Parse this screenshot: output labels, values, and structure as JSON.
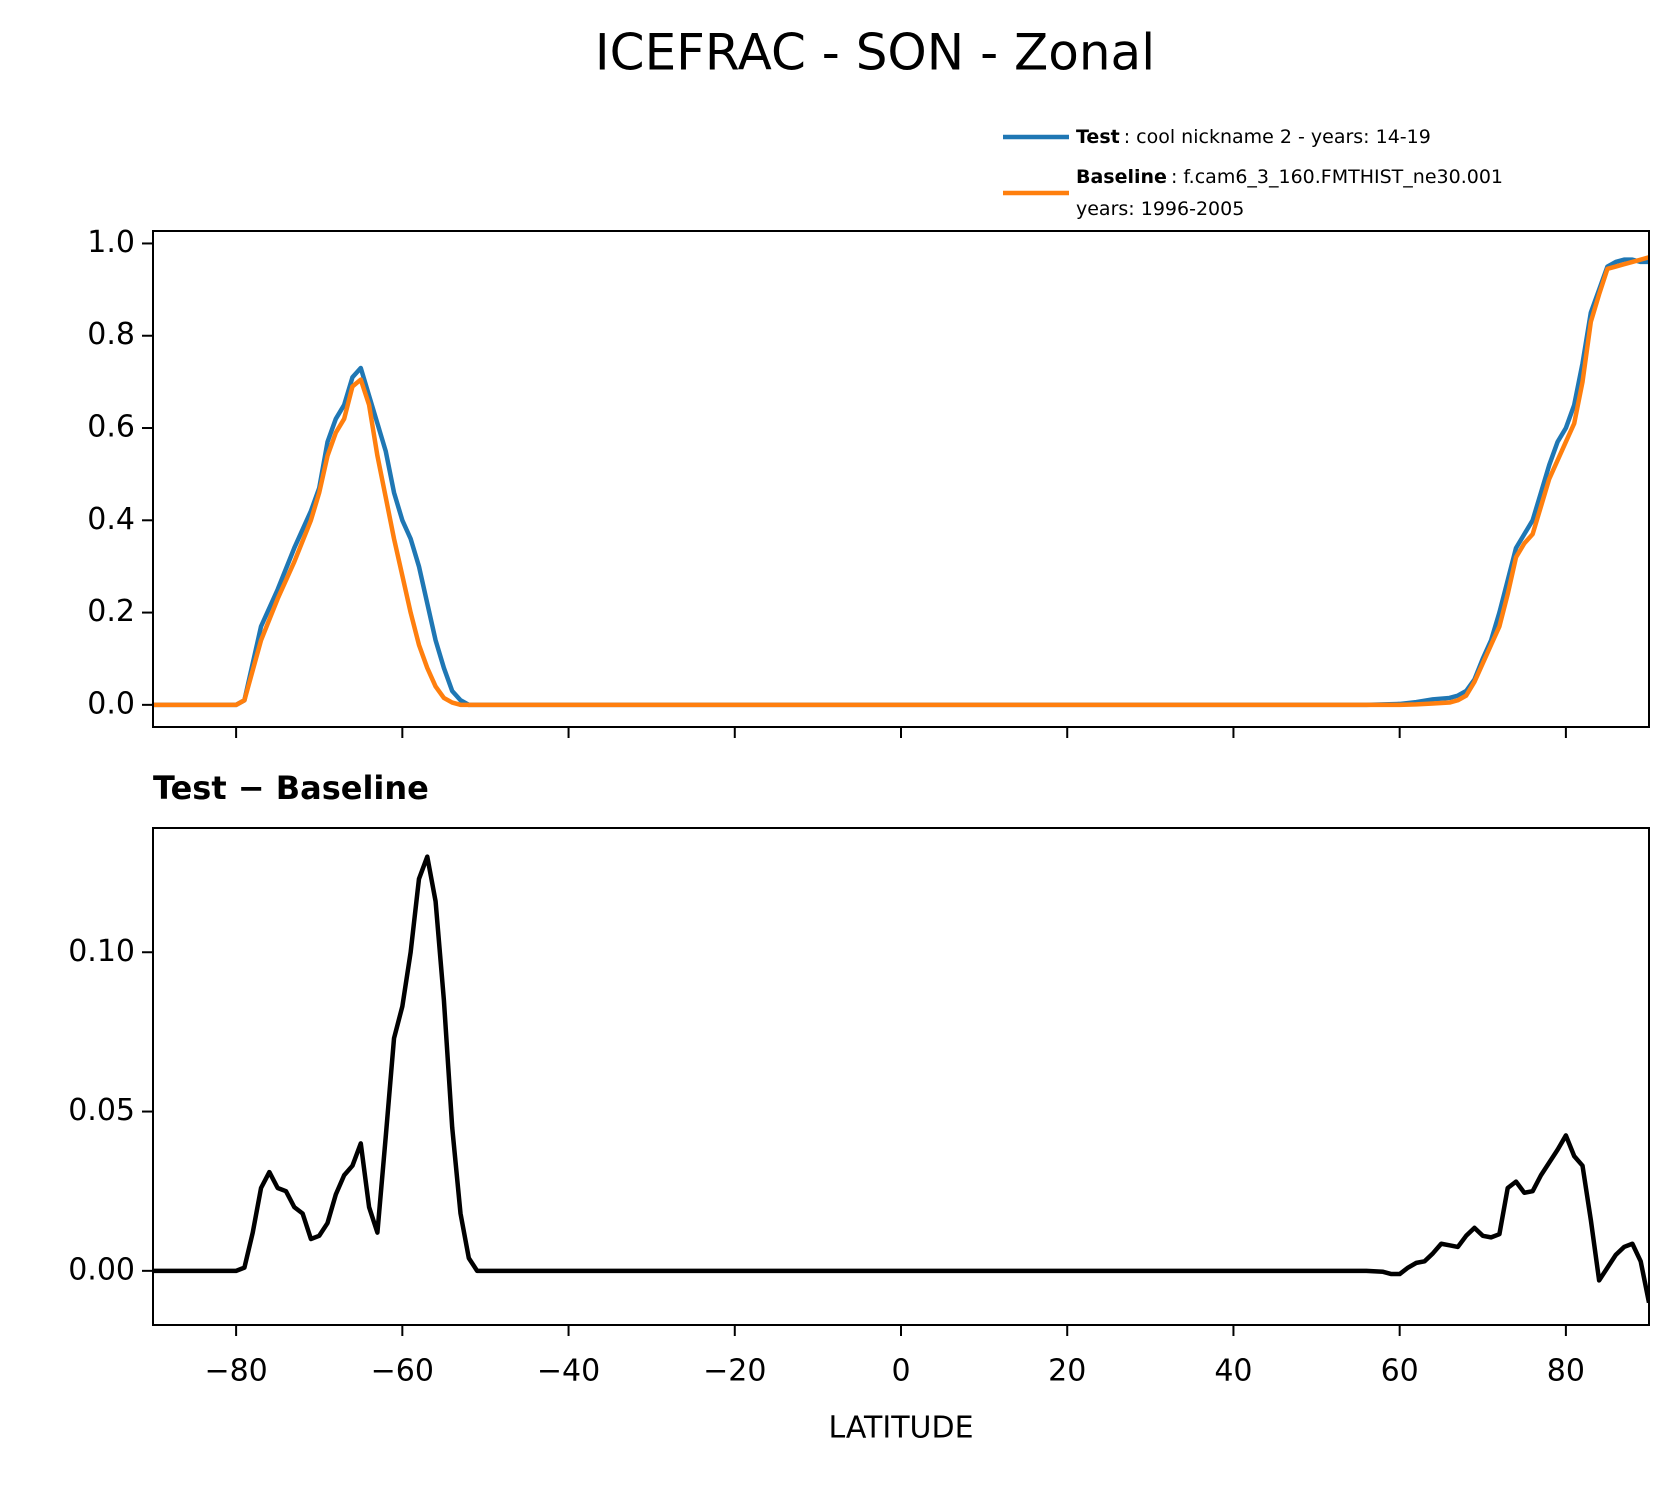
{
  "title": "ICEFRAC - SON - Zonal",
  "chart_data": [
    {
      "type": "line",
      "x": [
        -90,
        -80,
        -79,
        -77,
        -75,
        -73,
        -71,
        -70,
        -69,
        -68,
        -67,
        -66,
        -65,
        -64,
        -63,
        -62,
        -61,
        -60,
        -59,
        -58,
        -57,
        -56,
        -55,
        -54,
        -53,
        -52,
        -50,
        0,
        50,
        56,
        60,
        62,
        64,
        66,
        67,
        68,
        69,
        70,
        71,
        72,
        73,
        74,
        75,
        76,
        77,
        78,
        79,
        80,
        81,
        82,
        83,
        84,
        85,
        86,
        87,
        88,
        89,
        90
      ],
      "series": [
        {
          "name": "Test",
          "legend_label": [
            ": cool nickname 2 - years: 14-19"
          ],
          "color": "#1f77b4",
          "values": [
            0,
            0,
            0.01,
            0.17,
            0.25,
            0.34,
            0.42,
            0.47,
            0.57,
            0.62,
            0.65,
            0.71,
            0.73,
            0.67,
            0.61,
            0.55,
            0.46,
            0.4,
            0.36,
            0.3,
            0.22,
            0.14,
            0.08,
            0.03,
            0.01,
            0,
            0,
            0,
            0,
            0,
            0.002,
            0.006,
            0.012,
            0.015,
            0.02,
            0.03,
            0.055,
            0.1,
            0.14,
            0.2,
            0.27,
            0.34,
            0.37,
            0.4,
            0.46,
            0.52,
            0.57,
            0.6,
            0.65,
            0.74,
            0.85,
            0.9,
            0.95,
            0.96,
            0.965,
            0.965,
            0.96,
            0.96
          ]
        },
        {
          "name": "Baseline",
          "legend_label": [
            ": f.cam6_3_160.FMTHIST_ne30.001",
            "years: 1996-2005"
          ],
          "color": "#ff7f0e",
          "values": [
            0,
            0,
            0.01,
            0.14,
            0.23,
            0.31,
            0.4,
            0.46,
            0.54,
            0.59,
            0.62,
            0.69,
            0.705,
            0.65,
            0.54,
            0.45,
            0.36,
            0.28,
            0.2,
            0.13,
            0.08,
            0.04,
            0.015,
            0.005,
            0,
            0,
            0,
            0,
            0,
            0,
            0,
            0.001,
            0.003,
            0.005,
            0.01,
            0.02,
            0.05,
            0.09,
            0.13,
            0.17,
            0.24,
            0.32,
            0.35,
            0.37,
            0.43,
            0.49,
            0.53,
            0.57,
            0.61,
            0.7,
            0.83,
            0.89,
            0.945,
            0.95,
            0.955,
            0.96,
            0.965,
            0.97
          ]
        }
      ],
      "xlim": [
        -90,
        90
      ],
      "xticks": [
        -80,
        -60,
        -40,
        -20,
        0,
        20,
        40,
        60,
        80
      ],
      "ylim": [
        -0.048,
        1.027
      ],
      "yticks": [
        {
          "value": 0,
          "label": "0.0"
        },
        {
          "value": 0.2,
          "label": "0.2"
        },
        {
          "value": 0.4,
          "label": "0.4"
        },
        {
          "value": 0.6,
          "label": "0.6"
        },
        {
          "value": 0.8,
          "label": "0.8"
        },
        {
          "value": 1.0,
          "label": "1.0"
        }
      ],
      "legend": "upper right"
    },
    {
      "type": "line",
      "title": "Test − Baseline",
      "xlabel": "LATITUDE",
      "x": [
        -90,
        -80,
        -79,
        -78,
        -77,
        -76,
        -75,
        -74,
        -73,
        -72,
        -71,
        -70,
        -69,
        -68,
        -67,
        -66,
        -65,
        -64,
        -63,
        -62,
        -61,
        -60,
        -59,
        -58,
        -57,
        -56,
        -55,
        -54,
        -53,
        -52,
        -51,
        -40,
        50,
        56,
        58,
        59,
        60,
        61,
        62,
        63,
        64,
        65,
        66,
        67,
        68,
        69,
        70,
        71,
        72,
        73,
        74,
        75,
        76,
        77,
        78,
        79,
        80,
        81,
        82,
        83,
        84,
        85,
        86,
        87,
        88,
        89,
        90
      ],
      "series": [
        {
          "name": "Test − Baseline",
          "color": "#000000",
          "values": [
            0,
            0,
            0.001,
            0.012,
            0.026,
            0.031,
            0.026,
            0.025,
            0.02,
            0.018,
            0.01,
            0.011,
            0.015,
            0.024,
            0.03,
            0.033,
            0.04,
            0.02,
            0.012,
            0.042,
            0.073,
            0.083,
            0.1,
            0.123,
            0.13,
            0.116,
            0.085,
            0.045,
            0.018,
            0.004,
            0,
            0,
            0,
            0,
            -0.0003,
            -0.001,
            -0.001,
            0.001,
            0.0025,
            0.003,
            0.0055,
            0.0085,
            0.008,
            0.0075,
            0.011,
            0.0135,
            0.011,
            0.0105,
            0.0115,
            0.026,
            0.028,
            0.0245,
            0.025,
            0.03,
            0.034,
            0.038,
            0.0425,
            0.036,
            0.033,
            0.016,
            -0.003,
            0.001,
            0.005,
            0.0075,
            0.0085,
            0.003,
            -0.01
          ]
        }
      ],
      "xlim": [
        -90,
        90
      ],
      "xticks": [
        {
          "value": -80,
          "label": "−80"
        },
        {
          "value": -60,
          "label": "−60"
        },
        {
          "value": -40,
          "label": "−40"
        },
        {
          "value": -20,
          "label": "−20"
        },
        0,
        20,
        40,
        60,
        80
      ],
      "ylim": [
        -0.017,
        0.139
      ],
      "yticks": [
        {
          "value": 0,
          "label": "0.00"
        },
        {
          "value": 0.05,
          "label": "0.05"
        },
        {
          "value": 0.1,
          "label": "0.10"
        }
      ]
    }
  ]
}
